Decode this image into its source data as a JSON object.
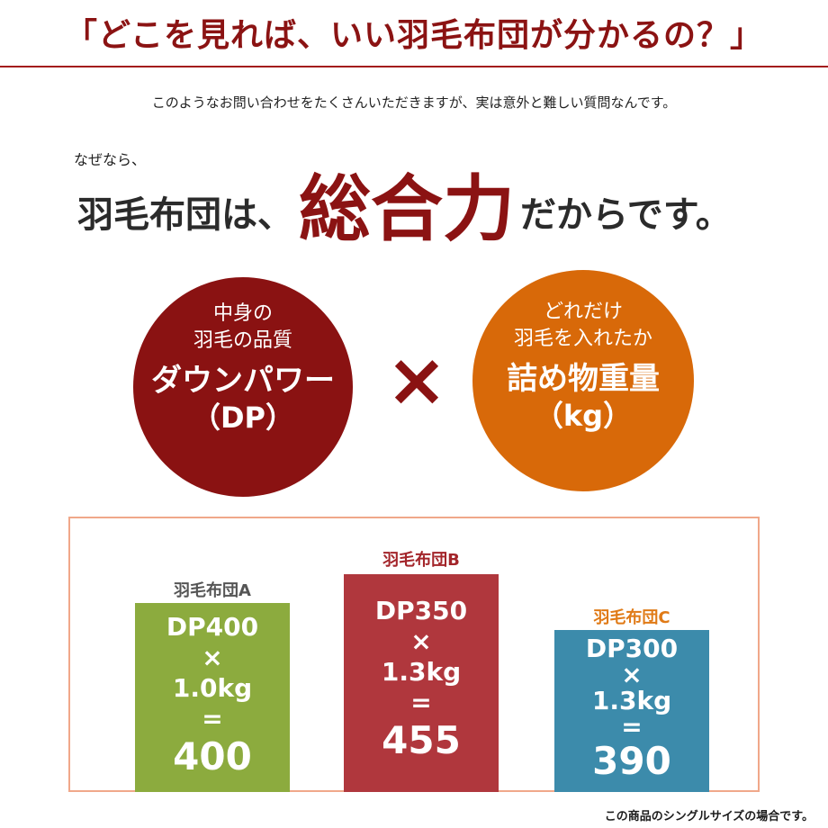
{
  "header": {
    "title": "「どこを見れば、いい羽毛布団が分かるの？」",
    "intro": "このようなお問い合わせをたくさんいただきますが、実は意外と難しい質問なんです。"
  },
  "lead": {
    "prefix": "なぜなら、",
    "before": "羽毛布団は、",
    "emphasis": "総合力",
    "after": "だからです。"
  },
  "factors": {
    "left": {
      "sub1": "中身の",
      "sub2": "羽毛の品質",
      "main": "ダウンパワー",
      "unit": "（DP）"
    },
    "operator": "×",
    "right": {
      "sub1": "どれだけ",
      "sub2": "羽毛を入れたか",
      "main": "詰め物重量",
      "unit": "（kg）"
    }
  },
  "comparison": [
    {
      "label": "羽毛布団A",
      "dp": "DP400",
      "times": "×",
      "weight": "1.0kg",
      "equals": "=",
      "result": "400",
      "score": 400,
      "color": "#8cab3e",
      "label_color": "#555555"
    },
    {
      "label": "羽毛布団B",
      "dp": "DP350",
      "times": "×",
      "weight": "1.3kg",
      "equals": "=",
      "result": "455",
      "score": 455,
      "color": "#b0373d",
      "label_color": "#a3252a"
    },
    {
      "label": "羽毛布団C",
      "dp": "DP300",
      "times": "×",
      "weight": "1.3kg",
      "equals": "=",
      "result": "390",
      "score": 390,
      "color": "#3c8bab",
      "label_color": "#e07a16"
    }
  ],
  "footnote": "この商品のシングルサイズの場合です。"
}
